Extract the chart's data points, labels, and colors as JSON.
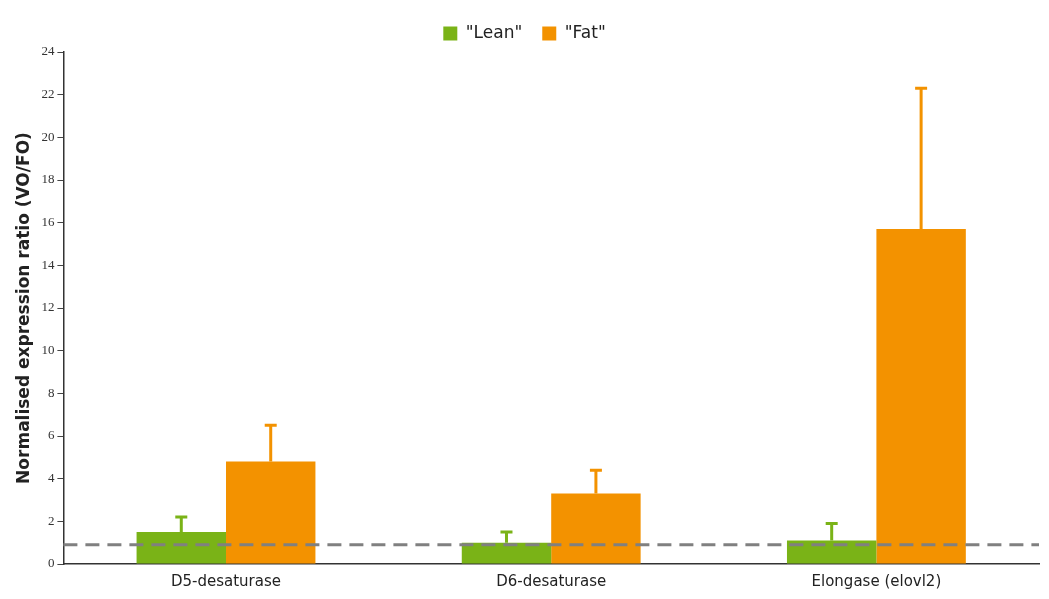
{
  "chart_data": {
    "type": "bar",
    "ylabel": "Normalised expression ratio (VO/FO)",
    "categories": [
      "D5-desaturase",
      "D6-desaturase",
      "Elongase (elovl2)"
    ],
    "series": [
      {
        "name": "\"Lean\"",
        "color": "#7ab317",
        "values": [
          1.5,
          1.0,
          1.1
        ],
        "errors": [
          [
            1.5,
            2.2
          ],
          [
            1.0,
            1.5
          ],
          [
            1.1,
            1.9
          ]
        ]
      },
      {
        "name": "\"Fat\"",
        "color": "#f39200",
        "values": [
          4.8,
          3.3,
          15.7
        ],
        "errors": [
          [
            4.8,
            6.5
          ],
          [
            3.3,
            4.4
          ],
          [
            15.7,
            22.3
          ]
        ]
      }
    ],
    "ylim": [
      0,
      24
    ],
    "yticks": [
      0,
      2,
      4,
      6,
      8,
      10,
      12,
      14,
      16,
      18,
      20,
      22,
      24
    ],
    "grid": false,
    "legend": "top",
    "ref_lines": [
      {
        "axis": "y",
        "value": 0.9,
        "color": "#808080",
        "line_style": "dashed"
      }
    ]
  }
}
